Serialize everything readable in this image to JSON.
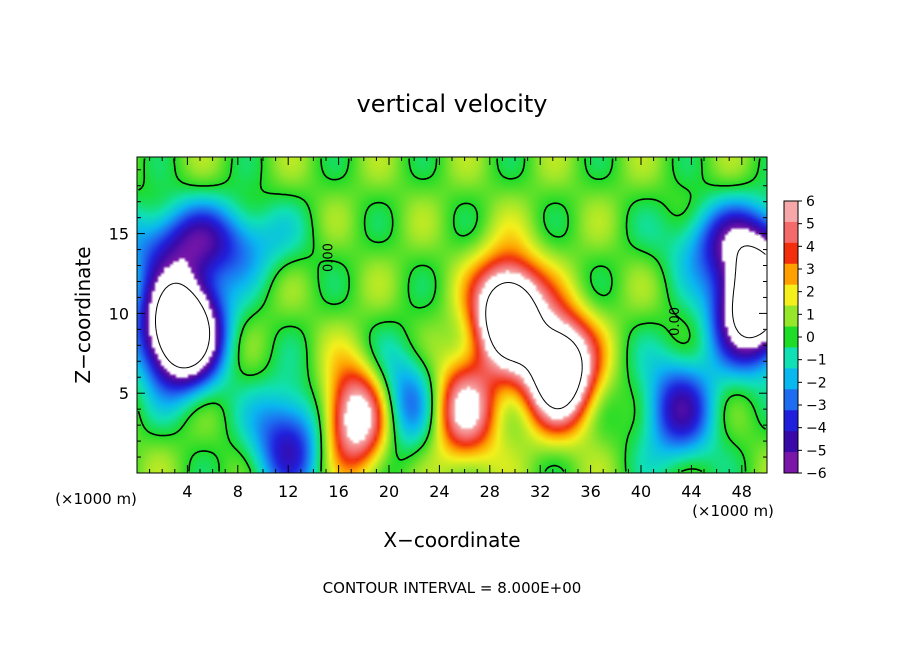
{
  "chart_data": {
    "type": "heatmap",
    "title": "vertical velocity",
    "xlabel": "X−coordinate",
    "ylabel": "Z−coordinate",
    "x_unit_left": "(×1000 m)",
    "x_unit_right": "(×1000 m)",
    "footer": "CONTOUR INTERVAL = 8.000E+00",
    "xlim": [
      0,
      50
    ],
    "ylim": [
      0,
      19.8
    ],
    "x_ticks": [
      4,
      8,
      12,
      16,
      20,
      24,
      28,
      32,
      36,
      40,
      44,
      48
    ],
    "y_ticks": [
      5,
      10,
      15
    ],
    "colorbar": {
      "min": -6,
      "max": 6,
      "tick_values": [
        6,
        5,
        4,
        3,
        2,
        1,
        0,
        -1,
        -2,
        -3,
        -4,
        -5,
        -6
      ],
      "tick_labels": [
        "6",
        "5",
        "4",
        "3",
        "2",
        "1",
        "0",
        "−1",
        "−2",
        "−3",
        "−4",
        "−5",
        "−6"
      ],
      "colors": [
        "#7a17a8",
        "#3a0aa8",
        "#2020dc",
        "#1e6cf0",
        "#0ab8f0",
        "#10e0b4",
        "#1edc28",
        "#96e62a",
        "#f5f01c",
        "#ffa000",
        "#f22e0c",
        "#f46a6a",
        "#f6a8a8"
      ],
      "above_max_color": "#ffffff",
      "below_min_color": "#ffffff"
    },
    "contour_labels": [
      {
        "text": "0.00",
        "x": 15.5,
        "z": 13.5
      },
      {
        "text": "0.00",
        "x": 43.0,
        "z": 9.5
      }
    ],
    "features": [
      {
        "kind": "updraft",
        "x": 17.5,
        "z": 3.5,
        "peak": 8
      },
      {
        "kind": "updraft",
        "x": 26.0,
        "z": 4.0,
        "peak": 6
      },
      {
        "kind": "updraft",
        "x": 29.5,
        "z": 10.0,
        "peak": 12
      },
      {
        "kind": "updraft",
        "x": 33.5,
        "z": 6.5,
        "peak": 12
      },
      {
        "kind": "downdraft",
        "x": 3.5,
        "z": 9.0,
        "peak": -14
      },
      {
        "kind": "downdraft",
        "x": 49.0,
        "z": 10.5,
        "peak": -12
      },
      {
        "kind": "downdraft",
        "x": 12.0,
        "z": 2.0,
        "peak": -5
      },
      {
        "kind": "downdraft",
        "x": 21.0,
        "z": 4.5,
        "peak": -4
      },
      {
        "kind": "downdraft",
        "x": 43.0,
        "z": 4.0,
        "peak": -5
      }
    ]
  }
}
